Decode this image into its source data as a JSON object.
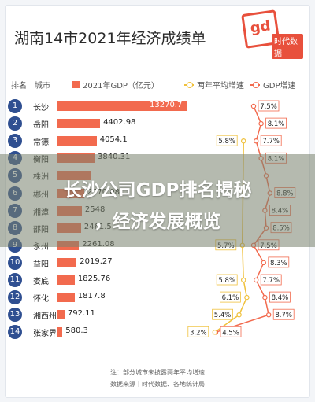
{
  "title": "湖南14市2021年经济成绩单",
  "logo": {
    "stamp": "gd",
    "tag": "时代数据"
  },
  "headers": {
    "rank": "排名",
    "city": "城市",
    "gdp": "2021年GDP（亿元）",
    "avg_growth": "两年平均增速",
    "gdp_growth": "GDP增速"
  },
  "colors": {
    "bar": "#f26a4e",
    "badge": "#2f4f91",
    "avg_line": "#f0c13c",
    "growth_line": "#f26a4e"
  },
  "overlay": {
    "line1": "长沙公司GDP排名揭秘",
    "line2": "，经济发展概览"
  },
  "footer": {
    "note": "注：部分城市未披露两年平均增速",
    "source": "数据来源｜时代数据、各地统计局"
  },
  "chart_data": {
    "type": "bar",
    "title": "湖南14市2021年经济成绩单",
    "xlabel": "",
    "ylabel": "",
    "categories": [
      "长沙",
      "岳阳",
      "常德",
      "衡阳",
      "株洲",
      "郴州",
      "湘潭",
      "邵阳",
      "永州",
      "益阳",
      "娄底",
      "怀化",
      "湘西州",
      "张家界"
    ],
    "ranks": [
      "1",
      "2",
      "3",
      "4",
      "5",
      "6",
      "7",
      "8",
      "9",
      "10",
      "11",
      "12",
      "13",
      "14"
    ],
    "series": [
      {
        "name": "2021年GDP（亿元）",
        "values": [
          13270.7,
          4402.98,
          4054.1,
          3840.31,
          3420.3,
          2770.08,
          2548.5,
          2461.5,
          2261.08,
          2019.27,
          1825.76,
          1817.8,
          792.11,
          580.3
        ],
        "labels": [
          "13270.7",
          "4402.98",
          "4054.1",
          "3840.31",
          "",
          "2770.08",
          "2548",
          "2461.5",
          "2261.08",
          "2019.27",
          "1825.76",
          "1817.8",
          "792.11",
          "580.3"
        ]
      },
      {
        "name": "两年平均增速",
        "values": [
          null,
          null,
          5.8,
          null,
          null,
          null,
          null,
          null,
          5.7,
          null,
          5.8,
          6.1,
          5.4,
          3.2
        ],
        "labels": [
          "",
          "",
          "5.8%",
          "",
          "",
          "",
          "",
          "",
          "5.7%",
          "",
          "5.8%",
          "6.1%",
          "5.4%",
          "3.2%"
        ]
      },
      {
        "name": "GDP增速",
        "values": [
          7.5,
          8.1,
          7.7,
          8.1,
          8.5,
          8.8,
          8.4,
          8.5,
          7.5,
          8.3,
          7.7,
          8.4,
          8.7,
          4.5
        ],
        "labels": [
          "7.5%",
          "8.1%",
          "7.7%",
          "8.1%",
          "",
          "8.8%",
          "8.4%",
          "8.5%",
          "7.5%",
          "8.3%",
          "7.7%",
          "8.4%",
          "8.7%",
          "4.5%"
        ]
      }
    ],
    "legend": "top"
  }
}
